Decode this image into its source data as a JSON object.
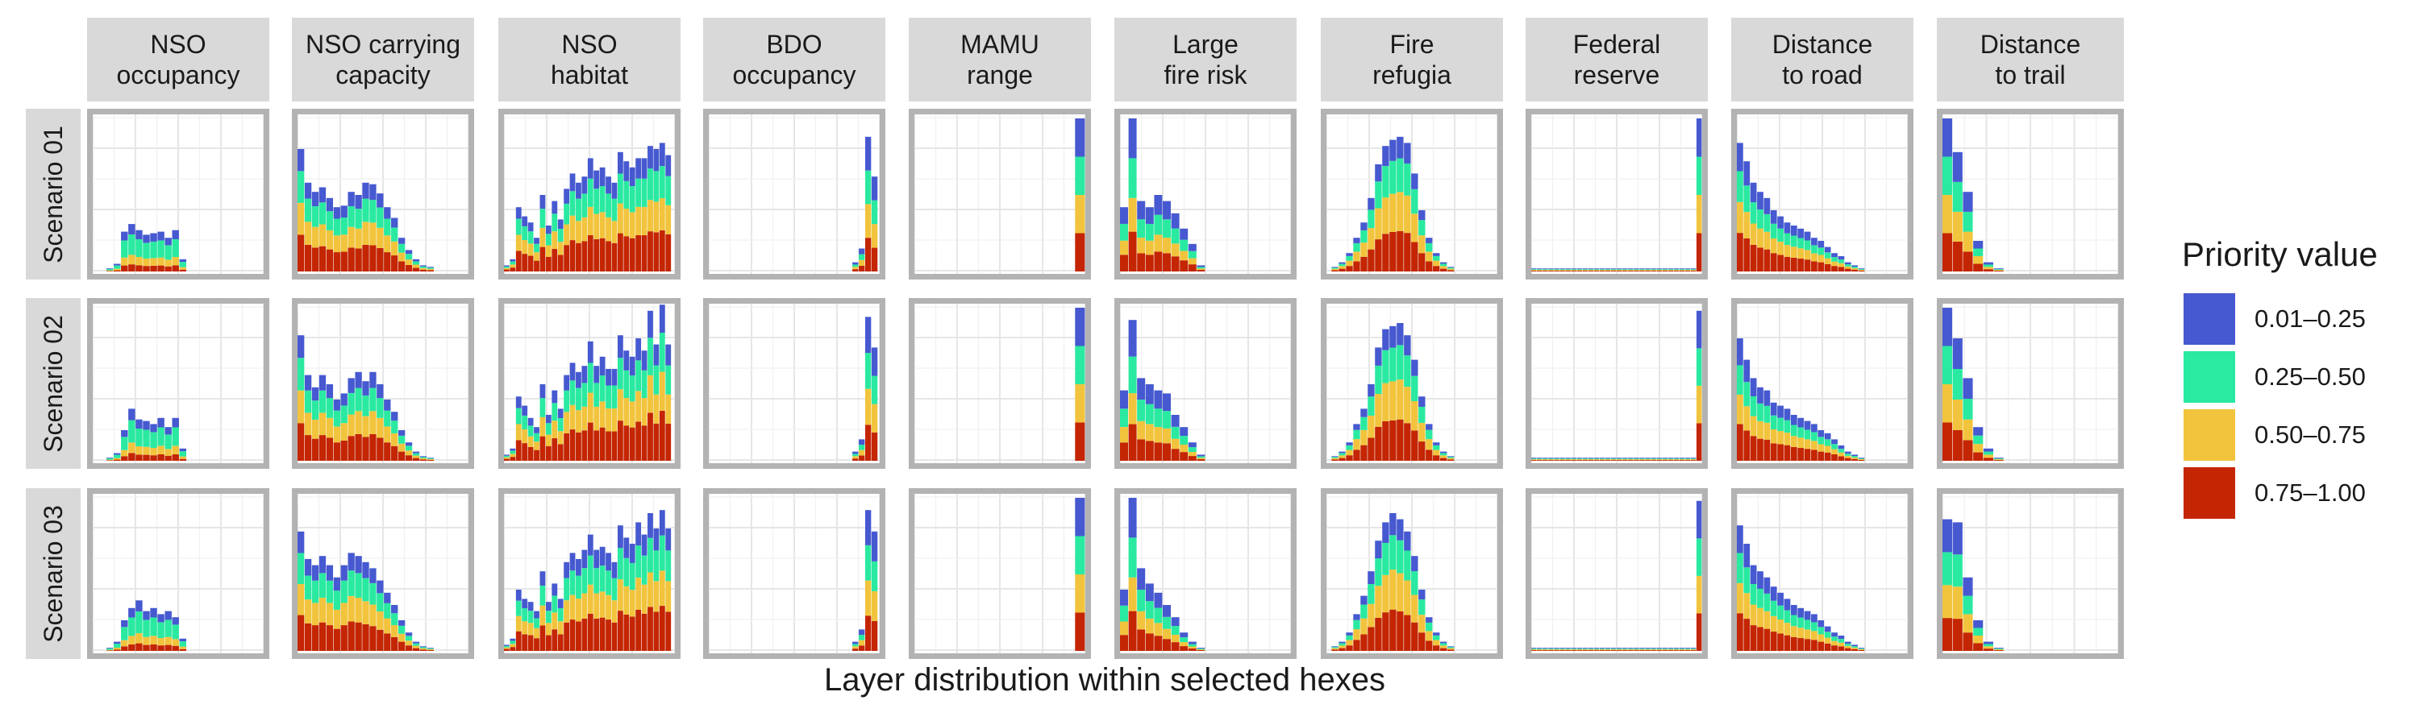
{
  "chart_data": {
    "type": "faceted-stacked-histogram",
    "x_title": "Layer distribution within selected hexes",
    "legend": {
      "title": "Priority value",
      "entries": [
        {
          "label": "0.01–0.25",
          "color": "#4659d0"
        },
        {
          "label": "0.25–0.50",
          "color": "#2ae9a1"
        },
        {
          "label": "0.50–0.75",
          "color": "#f2c43d"
        },
        {
          "label": "0.75–1.00",
          "color": "#c42503"
        }
      ]
    },
    "facet_columns": [
      {
        "key": "nso_occ",
        "label": "NSO\noccupancy"
      },
      {
        "key": "nso_cc",
        "label": "NSO carrying\ncapacity"
      },
      {
        "key": "nso_hab",
        "label": "NSO\nhabitat"
      },
      {
        "key": "bdo_occ",
        "label": "BDO\noccupancy"
      },
      {
        "key": "mamu",
        "label": "MAMU\nrange"
      },
      {
        "key": "fire_risk",
        "label": "Large\nfire risk"
      },
      {
        "key": "refugia",
        "label": "Fire\nrefugia"
      },
      {
        "key": "reserve",
        "label": "Federal\nreserve"
      },
      {
        "key": "road",
        "label": "Distance\nto road"
      },
      {
        "key": "trail",
        "label": "Distance\nto trail"
      }
    ],
    "facet_rows": [
      {
        "key": "s01",
        "label": "Scenario 01"
      },
      {
        "key": "s02",
        "label": "Scenario 02"
      },
      {
        "key": "s03",
        "label": "Scenario 03"
      }
    ],
    "y_max": 100,
    "bins": {
      "s01": {
        "nso_occ": {
          "x0": 0.08,
          "x1": 0.55,
          "totals": [
            2,
            5,
            26,
            31,
            27,
            24,
            25,
            26,
            22,
            27,
            8
          ],
          "fractions": [
            0.22,
            0.43,
            0.2,
            0.15
          ]
        },
        "nso_cc": {
          "x0": 0.0,
          "x1": 0.8,
          "totals": [
            80,
            58,
            52,
            55,
            48,
            42,
            43,
            52,
            50,
            58,
            57,
            51,
            42,
            35,
            22,
            14,
            8,
            4,
            3
          ],
          "fractions": [
            0.18,
            0.26,
            0.26,
            0.3
          ]
        },
        "nso_hab": {
          "x0": 0.0,
          "x1": 0.98,
          "totals": [
            4,
            8,
            42,
            36,
            32,
            22,
            50,
            30,
            46,
            34,
            54,
            64,
            58,
            62,
            74,
            66,
            68,
            62,
            58,
            78,
            72,
            68,
            74,
            74,
            82,
            80,
            84,
            76
          ],
          "fractions": [
            0.18,
            0.25,
            0.25,
            0.32
          ]
        },
        "bdo_occ": {
          "x0": 0.84,
          "x1": 0.99,
          "totals": [
            6,
            15,
            88,
            62
          ],
          "fractions": [
            0.25,
            0.25,
            0.25,
            0.25
          ]
        },
        "mamu": {
          "x0": 0.94,
          "x1": 1.0,
          "totals": [
            100
          ],
          "fractions": [
            0.25,
            0.25,
            0.25,
            0.25
          ]
        },
        "fire_risk": {
          "x0": 0.0,
          "x1": 0.5,
          "totals": [
            42,
            100,
            46,
            42,
            50,
            46,
            38,
            28,
            18,
            4
          ],
          "fractions": [
            0.26,
            0.26,
            0.22,
            0.26
          ]
        },
        "refugia": {
          "x0": 0.03,
          "x1": 0.75,
          "totals": [
            3,
            6,
            12,
            22,
            32,
            48,
            70,
            82,
            86,
            88,
            84,
            64,
            40,
            22,
            12,
            6,
            3
          ],
          "fractions": [
            0.16,
            0.25,
            0.29,
            0.3
          ]
        },
        "reserve": {
          "x0": 0.0,
          "x1": 1.0,
          "totals": [
            2,
            2,
            2,
            2,
            2,
            2,
            2,
            2,
            2,
            2,
            2,
            2,
            2,
            2,
            2,
            2,
            2,
            2,
            2,
            2,
            2,
            2,
            2,
            2,
            2,
            2,
            2,
            2,
            2,
            100
          ],
          "fractions": [
            0.25,
            0.25,
            0.25,
            0.25
          ]
        },
        "road": {
          "x0": 0.0,
          "x1": 0.75,
          "totals": [
            84,
            72,
            58,
            52,
            48,
            40,
            36,
            32,
            30,
            28,
            26,
            22,
            20,
            16,
            12,
            10,
            6,
            4,
            2
          ],
          "fractions": [
            0.22,
            0.24,
            0.24,
            0.3
          ]
        },
        "trail": {
          "x0": 0.0,
          "x1": 0.35,
          "totals": [
            100,
            78,
            52,
            20,
            6,
            2
          ],
          "fractions": [
            0.25,
            0.25,
            0.25,
            0.25
          ]
        }
      },
      "s02": {
        "nso_occ": {
          "x0": 0.08,
          "x1": 0.55,
          "totals": [
            2,
            5,
            20,
            34,
            27,
            26,
            24,
            28,
            22,
            28,
            8
          ],
          "fractions": [
            0.22,
            0.43,
            0.2,
            0.15
          ]
        },
        "nso_cc": {
          "x0": 0.0,
          "x1": 0.8,
          "totals": [
            82,
            56,
            48,
            56,
            50,
            40,
            44,
            54,
            58,
            52,
            58,
            50,
            40,
            32,
            20,
            12,
            6,
            3,
            2
          ],
          "fractions": [
            0.18,
            0.26,
            0.26,
            0.3
          ]
        },
        "nso_hab": {
          "x0": 0.0,
          "x1": 0.98,
          "totals": [
            4,
            8,
            42,
            36,
            28,
            22,
            50,
            30,
            46,
            34,
            56,
            64,
            58,
            62,
            78,
            62,
            68,
            60,
            60,
            82,
            72,
            68,
            80,
            72,
            98,
            76,
            102,
            76
          ],
          "fractions": [
            0.18,
            0.25,
            0.25,
            0.32
          ]
        },
        "bdo_occ": {
          "x0": 0.84,
          "x1": 0.99,
          "totals": [
            6,
            14,
            94,
            74
          ],
          "fractions": [
            0.25,
            0.25,
            0.25,
            0.25
          ]
        },
        "mamu": {
          "x0": 0.94,
          "x1": 1.0,
          "totals": [
            100
          ],
          "fractions": [
            0.25,
            0.25,
            0.25,
            0.25
          ]
        },
        "fire_risk": {
          "x0": 0.0,
          "x1": 0.5,
          "totals": [
            46,
            92,
            54,
            50,
            46,
            44,
            30,
            22,
            12,
            4
          ],
          "fractions": [
            0.26,
            0.26,
            0.22,
            0.26
          ]
        },
        "refugia": {
          "x0": 0.03,
          "x1": 0.75,
          "totals": [
            3,
            6,
            12,
            24,
            34,
            50,
            74,
            86,
            88,
            90,
            82,
            66,
            42,
            24,
            12,
            6,
            3
          ],
          "fractions": [
            0.16,
            0.25,
            0.29,
            0.3
          ]
        },
        "reserve": {
          "x0": 0.0,
          "x1": 1.0,
          "totals": [
            2,
            2,
            2,
            2,
            2,
            2,
            2,
            2,
            2,
            2,
            2,
            2,
            2,
            2,
            2,
            2,
            2,
            2,
            2,
            2,
            2,
            2,
            2,
            2,
            2,
            2,
            2,
            2,
            2,
            98
          ],
          "fractions": [
            0.25,
            0.25,
            0.25,
            0.25
          ]
        },
        "road": {
          "x0": 0.0,
          "x1": 0.75,
          "totals": [
            80,
            66,
            54,
            48,
            46,
            38,
            36,
            34,
            30,
            28,
            26,
            24,
            20,
            18,
            14,
            10,
            6,
            4,
            2
          ],
          "fractions": [
            0.22,
            0.24,
            0.24,
            0.3
          ]
        },
        "trail": {
          "x0": 0.0,
          "x1": 0.35,
          "totals": [
            100,
            80,
            54,
            22,
            8,
            2
          ],
          "fractions": [
            0.25,
            0.25,
            0.25,
            0.25
          ]
        }
      },
      "s03": {
        "nso_occ": {
          "x0": 0.08,
          "x1": 0.55,
          "totals": [
            2,
            6,
            20,
            28,
            33,
            26,
            28,
            24,
            26,
            22,
            8
          ],
          "fractions": [
            0.22,
            0.43,
            0.2,
            0.15
          ]
        },
        "nso_cc": {
          "x0": 0.0,
          "x1": 0.8,
          "totals": [
            78,
            60,
            56,
            62,
            56,
            48,
            56,
            64,
            62,
            58,
            54,
            46,
            38,
            30,
            20,
            12,
            6,
            3,
            2
          ],
          "fractions": [
            0.18,
            0.26,
            0.26,
            0.3
          ]
        },
        "nso_hab": {
          "x0": 0.0,
          "x1": 0.98,
          "totals": [
            4,
            8,
            40,
            34,
            32,
            26,
            52,
            32,
            44,
            34,
            58,
            64,
            60,
            66,
            76,
            66,
            68,
            64,
            58,
            82,
            74,
            70,
            84,
            76,
            90,
            80,
            92,
            80
          ],
          "fractions": [
            0.18,
            0.25,
            0.25,
            0.32
          ]
        },
        "bdo_occ": {
          "x0": 0.84,
          "x1": 0.99,
          "totals": [
            6,
            14,
            92,
            78
          ],
          "fractions": [
            0.25,
            0.25,
            0.25,
            0.25
          ]
        },
        "mamu": {
          "x0": 0.94,
          "x1": 1.0,
          "totals": [
            100
          ],
          "fractions": [
            0.25,
            0.25,
            0.25,
            0.25
          ]
        },
        "fire_risk": {
          "x0": 0.0,
          "x1": 0.5,
          "totals": [
            40,
            100,
            54,
            44,
            38,
            30,
            22,
            12,
            6,
            2
          ],
          "fractions": [
            0.26,
            0.26,
            0.22,
            0.26
          ]
        },
        "refugia": {
          "x0": 0.03,
          "x1": 0.75,
          "totals": [
            3,
            6,
            12,
            24,
            36,
            52,
            72,
            84,
            90,
            86,
            78,
            62,
            40,
            22,
            12,
            6,
            3
          ],
          "fractions": [
            0.16,
            0.25,
            0.29,
            0.3
          ]
        },
        "reserve": {
          "x0": 0.0,
          "x1": 1.0,
          "totals": [
            2,
            2,
            2,
            2,
            2,
            2,
            2,
            2,
            2,
            2,
            2,
            2,
            2,
            2,
            2,
            2,
            2,
            2,
            2,
            2,
            2,
            2,
            2,
            2,
            2,
            2,
            2,
            2,
            2,
            98
          ],
          "fractions": [
            0.25,
            0.25,
            0.25,
            0.25
          ]
        },
        "road": {
          "x0": 0.0,
          "x1": 0.75,
          "totals": [
            82,
            70,
            56,
            52,
            48,
            42,
            38,
            34,
            30,
            28,
            26,
            24,
            20,
            16,
            12,
            10,
            6,
            4,
            2
          ],
          "fractions": [
            0.22,
            0.24,
            0.24,
            0.3
          ]
        },
        "trail": {
          "x0": 0.0,
          "x1": 0.35,
          "totals": [
            86,
            84,
            48,
            20,
            6,
            2
          ],
          "fractions": [
            0.25,
            0.25,
            0.25,
            0.25
          ]
        }
      }
    }
  }
}
